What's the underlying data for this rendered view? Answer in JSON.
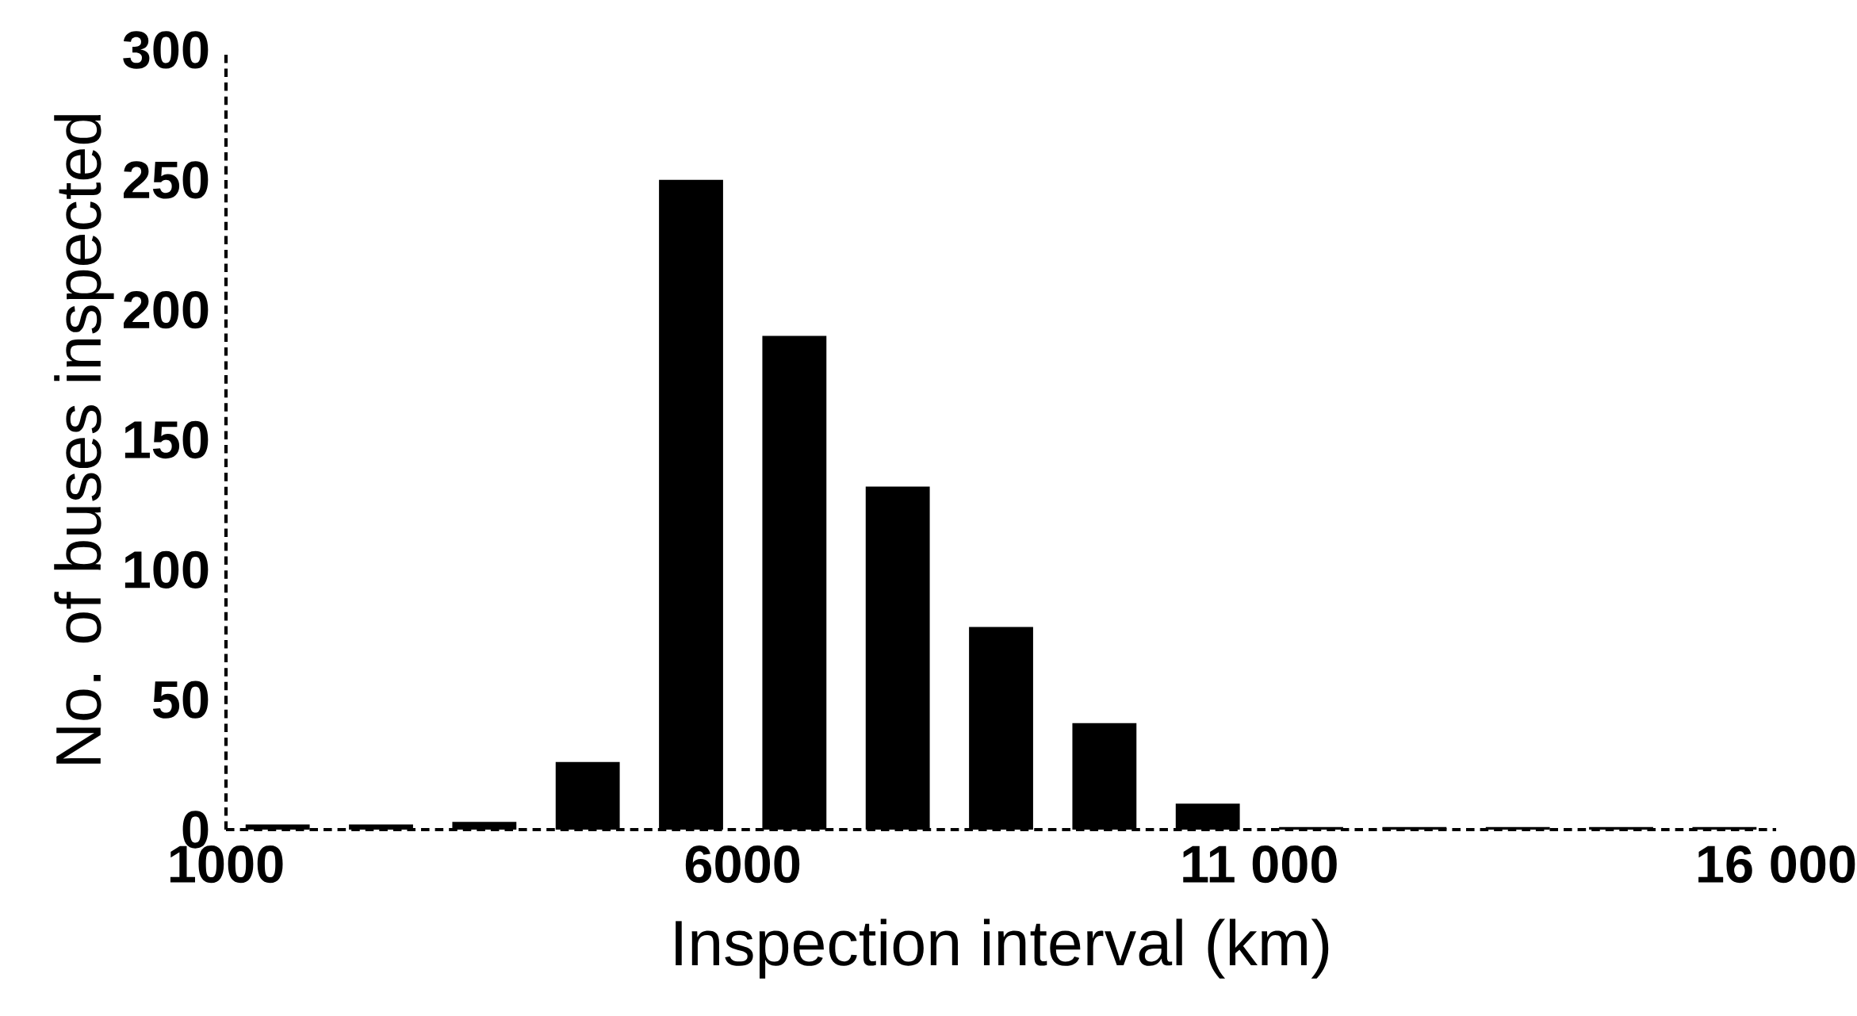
{
  "chart_data": {
    "type": "histogram",
    "xlabel": "Inspection interval (km)",
    "ylabel": "No. of buses inspected",
    "bins": [
      1000,
      2000,
      3000,
      4000,
      5000,
      6000,
      7000,
      8000,
      9000,
      10000,
      11000,
      12000,
      13000,
      14000,
      15000,
      16000
    ],
    "values": [
      2,
      2,
      3,
      26,
      250,
      190,
      132,
      78,
      41,
      10,
      1,
      1,
      1,
      1,
      1
    ],
    "color": "#000000",
    "xlim": [
      1000,
      16000
    ],
    "xticks": [
      1000,
      6000,
      {
        "value": 11000,
        "label": "11 000"
      },
      {
        "value": 16000,
        "label": "16 000"
      }
    ],
    "ylim": [
      0,
      300
    ],
    "yticks": [
      0,
      50,
      100,
      150,
      200,
      250,
      300
    ],
    "grid": false
  }
}
